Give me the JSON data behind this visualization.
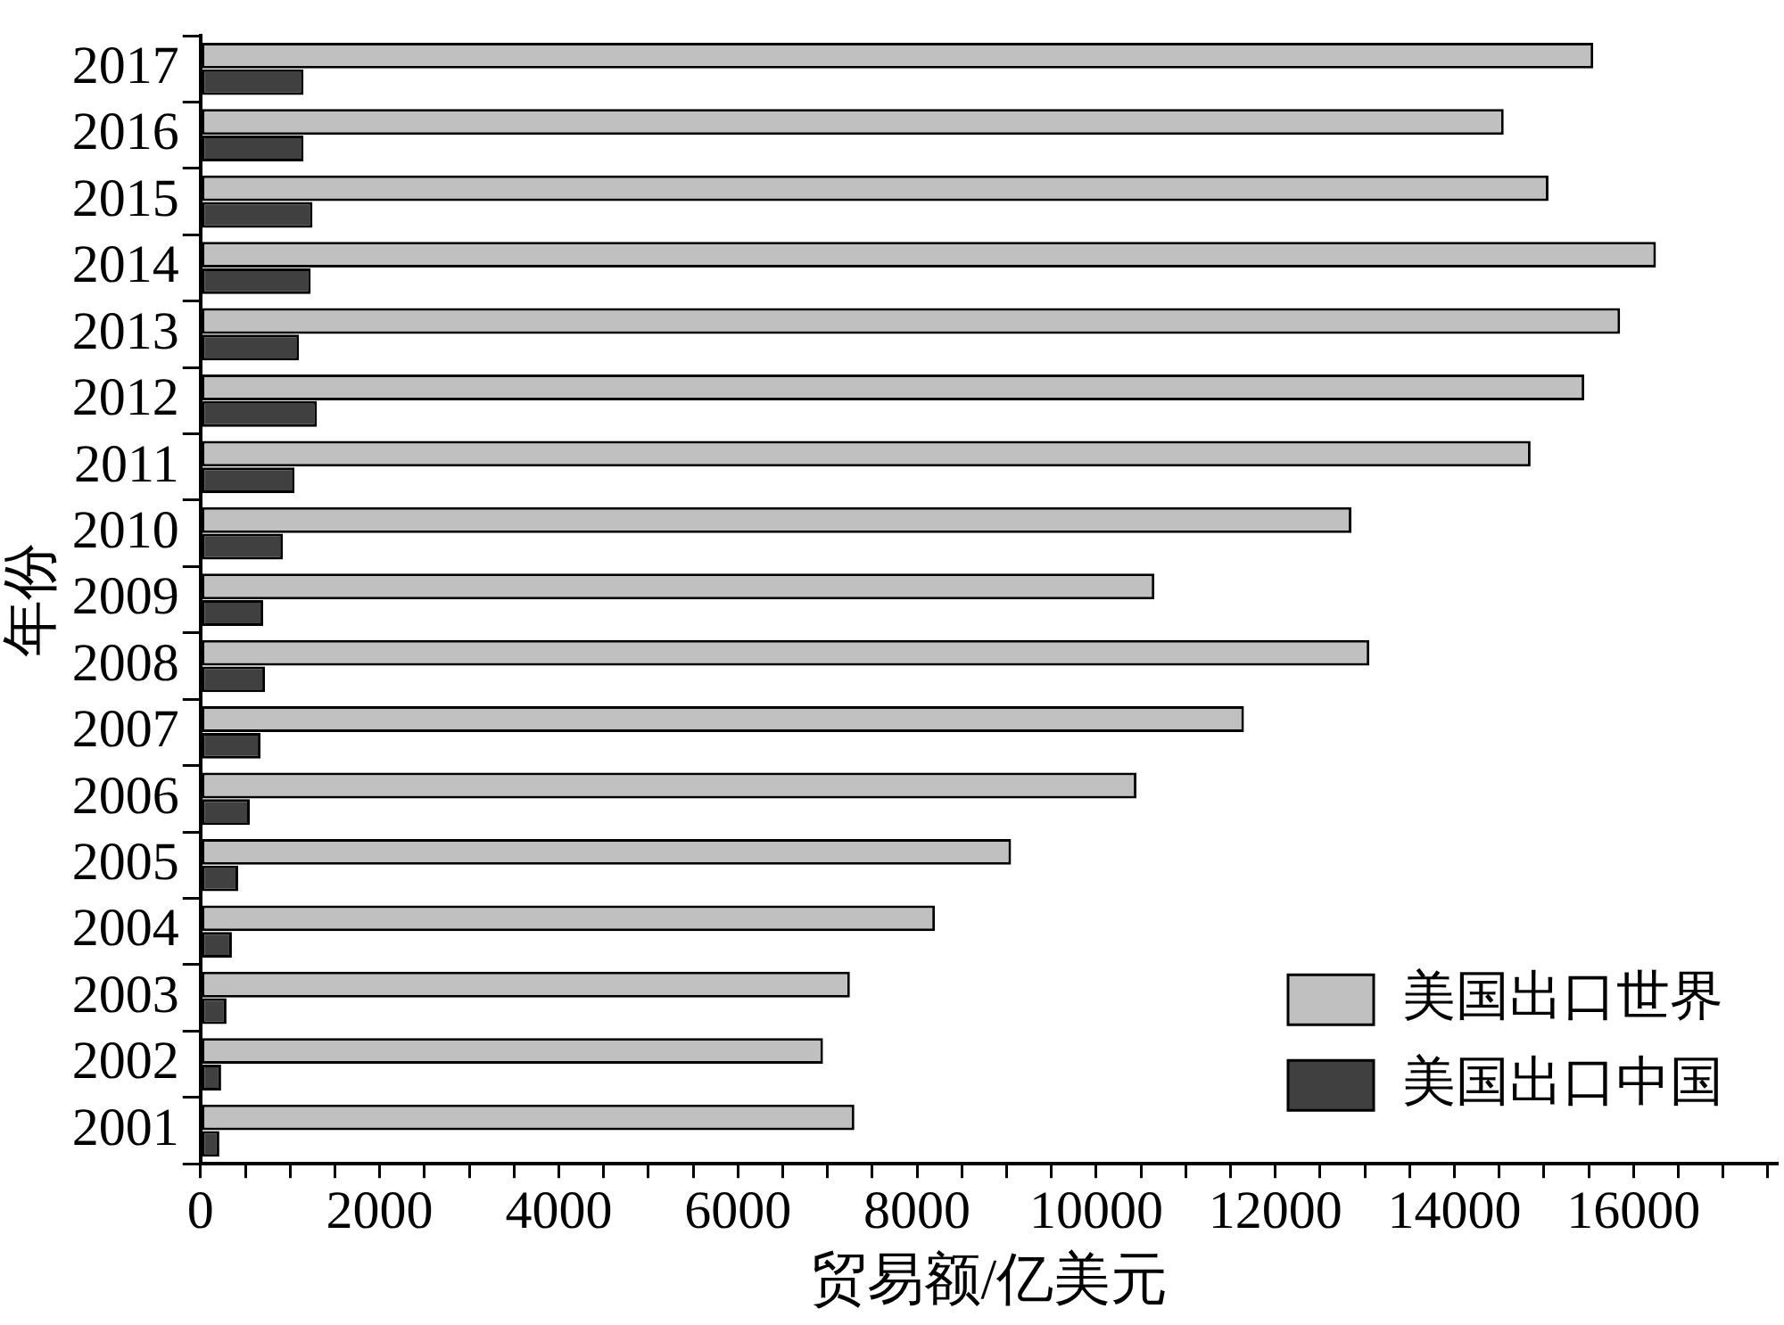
{
  "chart_data": {
    "type": "bar",
    "orientation": "horizontal",
    "xlabel": "贸易额/亿美元",
    "ylabel": "年份",
    "categories": [
      "2017",
      "2016",
      "2015",
      "2014",
      "2013",
      "2012",
      "2011",
      "2010",
      "2009",
      "2008",
      "2007",
      "2006",
      "2005",
      "2004",
      "2003",
      "2002",
      "2001"
    ],
    "series": [
      {
        "name": "美国出口世界",
        "color": "#c0c0c0",
        "values": [
          15550,
          14550,
          15050,
          16250,
          15850,
          15450,
          14850,
          12850,
          10650,
          13050,
          11650,
          10450,
          9050,
          8200,
          7250,
          6950,
          7300
        ]
      },
      {
        "name": "美国出口中国",
        "color": "#404040",
        "values": [
          1150,
          1150,
          1250,
          1230,
          1100,
          1300,
          1050,
          920,
          700,
          720,
          670,
          550,
          420,
          350,
          290,
          230,
          210
        ]
      }
    ],
    "xlim": [
      0,
      17600
    ],
    "xticks": [
      0,
      {
        "value": 500,
        "label": null
      },
      2000,
      {
        "value": 1000,
        "label": null
      },
      {
        "value": 1500,
        "label": null
      },
      {
        "value": 2500,
        "label": null
      },
      {
        "value": 3000,
        "label": null
      },
      {
        "value": 3500,
        "label": null
      },
      4000,
      {
        "value": 4500,
        "label": null
      },
      {
        "value": 5000,
        "label": null
      },
      {
        "value": 5500,
        "label": null
      },
      6000,
      {
        "value": 6500,
        "label": null
      },
      {
        "value": 7000,
        "label": null
      },
      {
        "value": 7500,
        "label": null
      },
      8000,
      {
        "value": 8500,
        "label": null
      },
      {
        "value": 9000,
        "label": null
      },
      {
        "value": 9500,
        "label": null
      },
      10000,
      {
        "value": 10500,
        "label": null
      },
      {
        "value": 11000,
        "label": null
      },
      {
        "value": 11500,
        "label": null
      },
      12000,
      {
        "value": 12500,
        "label": null
      },
      {
        "value": 13000,
        "label": null
      },
      {
        "value": 13500,
        "label": null
      },
      14000,
      {
        "value": 14500,
        "label": null
      },
      {
        "value": 15000,
        "label": null
      },
      {
        "value": 15500,
        "label": null
      },
      16000,
      {
        "value": 16500,
        "label": null
      },
      {
        "value": 17000,
        "label": null
      },
      {
        "value": 17500,
        "label": null
      }
    ],
    "grid": false,
    "legend": "bottom right"
  }
}
